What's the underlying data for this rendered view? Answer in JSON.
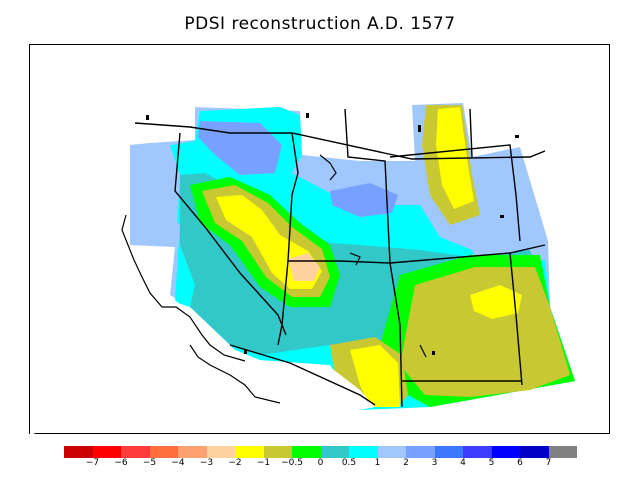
{
  "title": "PDSI reconstruction A.D. 1577",
  "colorbar": {
    "colors": [
      "#cc0000",
      "#ff0000",
      "#ff3c3c",
      "#ff6e3c",
      "#ffa070",
      "#ffd2a0",
      "#ffff00",
      "#c8c832",
      "#00ff00",
      "#32c8c8",
      "#00ffff",
      "#a0c8ff",
      "#78a0ff",
      "#3c78ff",
      "#3c3cff",
      "#0000ff",
      "#0000c8",
      "#808080"
    ],
    "tick_labels": [
      "−7",
      "−6",
      "−5",
      "−4",
      "−3",
      "−2",
      "−1",
      "−0.5",
      "0",
      "0.5",
      "1",
      "2",
      "3",
      "4",
      "5",
      "6",
      "7"
    ]
  },
  "map": {
    "fill_colors": {
      "light_blue": "#a0c8ff",
      "medium_blue": "#78a0ff",
      "cyan": "#00ffff",
      "teal": "#32c8c8",
      "green": "#00ff00",
      "olive": "#c8c832",
      "yellow": "#ffff00",
      "peach": "#ffd2a0"
    }
  }
}
